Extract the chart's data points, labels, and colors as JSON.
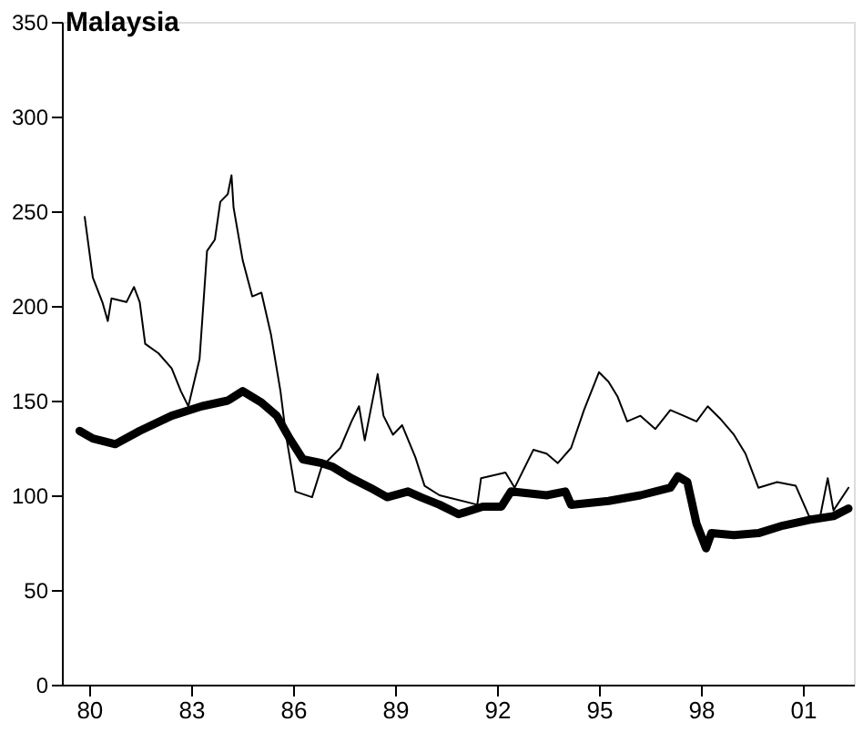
{
  "chart_data": {
    "type": "line",
    "title": "Malaysia",
    "xlim": [
      1979.2,
      2002.5
    ],
    "ylim": [
      0,
      350
    ],
    "xticks": [
      {
        "value": 1980,
        "label": "80"
      },
      {
        "value": 1983,
        "label": "83"
      },
      {
        "value": 1986,
        "label": "86"
      },
      {
        "value": 1989,
        "label": "89"
      },
      {
        "value": 1992,
        "label": "92"
      },
      {
        "value": 1995,
        "label": "95"
      },
      {
        "value": 1998,
        "label": "98"
      },
      {
        "value": 2001,
        "label": "01"
      }
    ],
    "yticks": [
      0,
      50,
      100,
      150,
      200,
      250,
      300,
      350
    ],
    "grid": false,
    "marker": "none",
    "line_style": "solid",
    "series": [
      {
        "color": "#000000",
        "x": [
          1979.87,
          1980.11,
          1980.39,
          1980.55,
          1980.66,
          1981.1,
          1981.32,
          1981.49,
          1981.65,
          1982.04,
          1982.43,
          1982.7,
          1982.92,
          1983.25,
          1983.47,
          1983.7,
          1983.86,
          1984.08,
          1984.19,
          1984.25,
          1984.52,
          1984.8,
          1985.07,
          1985.35,
          1985.63,
          1985.79,
          1986.07,
          1986.56,
          1986.84,
          1987.39,
          1987.72,
          1987.94,
          1988.11,
          1988.49,
          1988.66,
          1988.94,
          1989.21,
          1989.6,
          1989.87,
          1990.31,
          1991.42,
          1991.53,
          1992.25,
          1992.52,
          1993.07,
          1993.46,
          1993.79,
          1994.18,
          1994.56,
          1995.0,
          1995.28,
          1995.55,
          1995.83,
          1996.22,
          1996.66,
          1997.1,
          1997.49,
          1997.87,
          1998.2,
          1998.59,
          1998.97,
          1999.31,
          1999.69,
          2000.24,
          2000.79,
          2001.18,
          2001.51,
          2001.73,
          2001.9,
          2002.34
        ],
        "values": [
          247,
          215,
          202,
          192,
          204,
          202,
          210,
          202,
          180,
          175,
          167,
          155,
          147,
          172,
          229,
          235,
          255,
          259,
          269,
          252,
          224,
          205,
          207,
          185,
          155,
          132,
          102,
          99,
          115,
          125,
          139,
          147,
          129,
          164,
          142,
          132,
          137,
          120,
          105,
          100,
          95,
          109,
          112,
          104,
          124,
          122,
          117,
          125,
          145,
          165,
          160,
          152,
          139,
          142,
          135,
          145,
          142,
          139,
          147,
          140,
          132,
          122,
          104,
          107,
          105,
          89,
          89,
          109,
          92,
          104
        ]
      },
      {
        "color": "#000000",
        "x": [
          1979.72,
          1980.11,
          1980.77,
          1981.49,
          1982.43,
          1983.31,
          1984.08,
          1984.52,
          1985.07,
          1985.52,
          1985.9,
          1986.29,
          1986.84,
          1987.17,
          1987.72,
          1988.27,
          1988.77,
          1989.38,
          1989.76,
          1990.31,
          1990.87,
          1991.58,
          1992.13,
          1992.41,
          1993.46,
          1994.01,
          1994.18,
          1995.28,
          1996.22,
          1997.1,
          1997.32,
          1997.6,
          1997.87,
          1998.15,
          1998.31,
          1998.97,
          1999.69,
          2000.41,
          2001.18,
          2001.9,
          2002.34
        ],
        "values": [
          134,
          130,
          127,
          134,
          142,
          147,
          150,
          155,
          149,
          142,
          130,
          119,
          117,
          115,
          109,
          104,
          99,
          102,
          99,
          95,
          90,
          94,
          94,
          102,
          100,
          102,
          95,
          97,
          100,
          104,
          110,
          107,
          85,
          72,
          80,
          79,
          80,
          84,
          87,
          89,
          93
        ]
      }
    ]
  }
}
